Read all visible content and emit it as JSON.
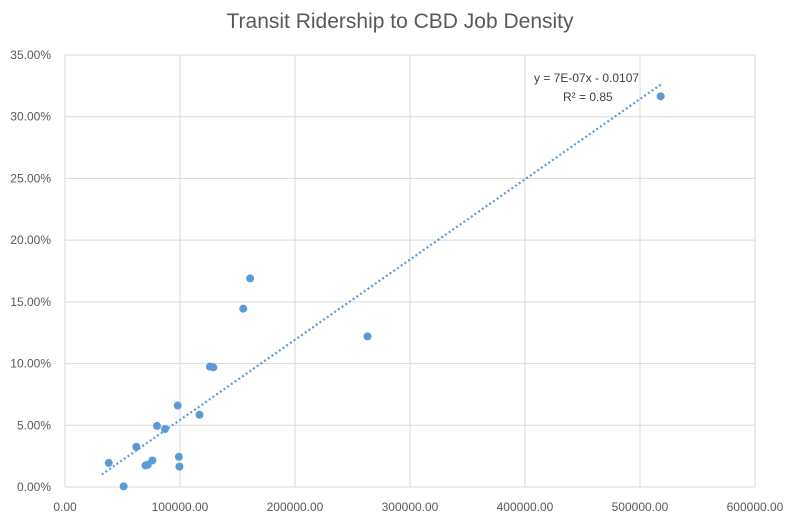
{
  "chart_data": {
    "type": "scatter",
    "title": "Transit Ridership to CBD Job Density",
    "xlabel": "",
    "ylabel": "",
    "xlim": [
      0,
      600000
    ],
    "ylim": [
      0,
      0.35
    ],
    "x_ticks": [
      0,
      100000,
      200000,
      300000,
      400000,
      500000,
      600000
    ],
    "y_ticks": [
      0,
      0.05,
      0.1,
      0.15,
      0.2,
      0.25,
      0.3,
      0.35
    ],
    "x_tick_labels": [
      "0.00",
      "100000.00",
      "200000.00",
      "300000.00",
      "400000.00",
      "500000.00",
      "600000.00"
    ],
    "y_tick_labels": [
      "0.00%",
      "5.00%",
      "10.00%",
      "15.00%",
      "20.00%",
      "25.00%",
      "30.00%",
      "35.00%"
    ],
    "grid": true,
    "legend": "none",
    "point_color": "#5b9bd5",
    "series": [
      {
        "points": [
          {
            "x": 38000,
            "y": 0.0195
          },
          {
            "x": 51000,
            "y": 0.0005
          },
          {
            "x": 62000,
            "y": 0.0325
          },
          {
            "x": 70000,
            "y": 0.0175
          },
          {
            "x": 72000,
            "y": 0.018
          },
          {
            "x": 76000,
            "y": 0.0215
          },
          {
            "x": 80000,
            "y": 0.0495
          },
          {
            "x": 87000,
            "y": 0.047
          },
          {
            "x": 98000,
            "y": 0.066
          },
          {
            "x": 99000,
            "y": 0.0245
          },
          {
            "x": 99500,
            "y": 0.0165
          },
          {
            "x": 117000,
            "y": 0.0585
          },
          {
            "x": 126000,
            "y": 0.0975
          },
          {
            "x": 129000,
            "y": 0.097
          },
          {
            "x": 155000,
            "y": 0.1445
          },
          {
            "x": 161000,
            "y": 0.169
          },
          {
            "x": 263000,
            "y": 0.122
          },
          {
            "x": 518000,
            "y": 0.3165
          }
        ]
      }
    ],
    "trendline": {
      "type": "linear",
      "style": "dotted",
      "color": "#5b9bd5",
      "slope": 6.5e-07,
      "intercept": -0.0107,
      "x_start": 32000,
      "x_end": 518000,
      "equation_label": "y = 7E-07x - 0.0107",
      "r2_label": "R² = 0.85"
    }
  }
}
